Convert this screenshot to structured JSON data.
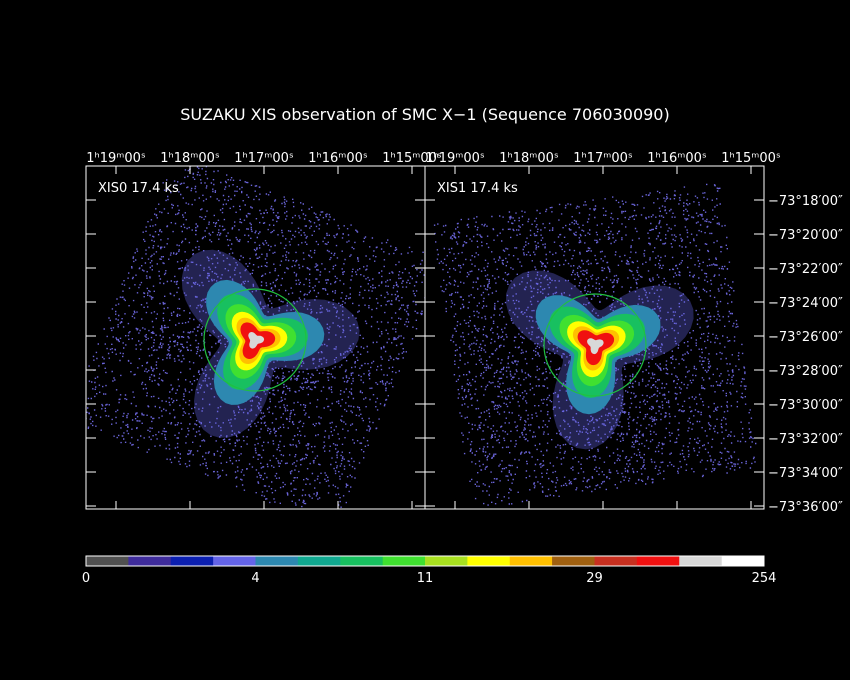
{
  "title": "SUZAKU XIS observation of SMC X−1  (Sequence 706030090)",
  "panels": [
    {
      "label": "XIS0 17.4 ks",
      "ra_ticks": [
        "1ʰ19ᵐ00ˢ",
        "1ʰ18ᵐ00ˢ",
        "1ʰ17ᵐ00ˢ",
        "1ʰ16ᵐ00ˢ",
        "1ʰ15ᵐ00ˢ"
      ]
    },
    {
      "label": "XIS1 17.4 ks",
      "ra_ticks": [
        "1ʰ19ᵐ00ˢ",
        "1ʰ18ᵐ00ˢ",
        "1ʰ17ᵐ00ˢ",
        "1ʰ16ᵐ00ˢ",
        "1ʰ15ᵐ00ˢ"
      ]
    }
  ],
  "dec_ticks": [
    "−73°18′00″",
    "−73°20′00″",
    "−73°22′00″",
    "−73°24′00″",
    "−73°26′00″",
    "−73°28′00″",
    "−73°30′00″",
    "−73°32′00″",
    "−73°34′00″",
    "−73°36′00″"
  ],
  "colorbar": {
    "colors": [
      "#505050",
      "#3f2c9c",
      "#0b1fb0",
      "#6464e8",
      "#2d88b0",
      "#10a890",
      "#18c060",
      "#40e030",
      "#a8e020",
      "#ffff00",
      "#ffc000",
      "#a06010",
      "#c83020",
      "#f01010",
      "#d8d8d8",
      "#ffffff"
    ],
    "labels": [
      "0",
      "4",
      "11",
      "29",
      "254"
    ]
  }
}
